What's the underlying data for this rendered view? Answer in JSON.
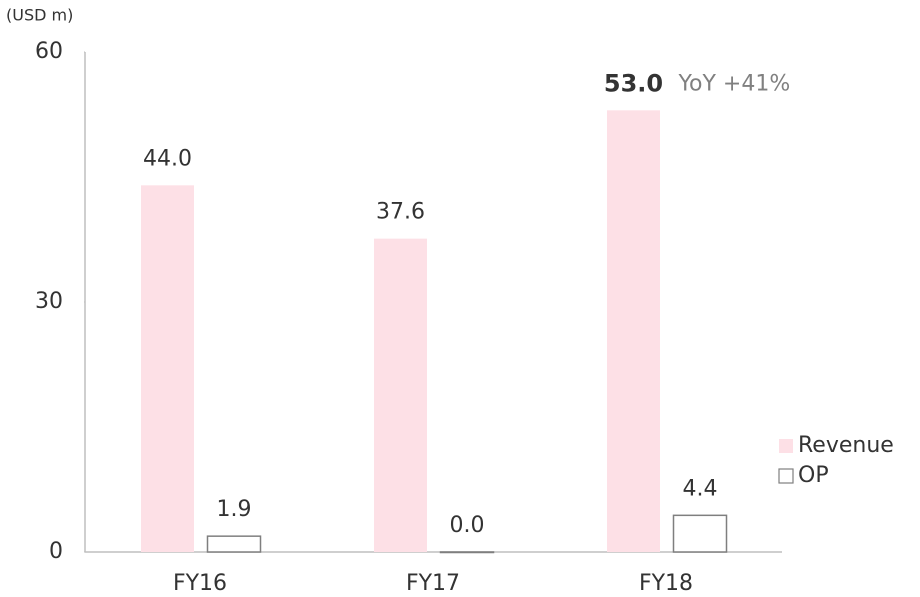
{
  "chart_data": {
    "type": "bar",
    "unit_label": "(USD m)",
    "categories": [
      "FY16",
      "FY17",
      "FY18"
    ],
    "series": [
      {
        "name": "Revenue",
        "color": "#fde0e6",
        "values": [
          44.0,
          37.6,
          53.0
        ],
        "value_labels": [
          "44.0",
          "37.6",
          "53.0"
        ]
      },
      {
        "name": "OP",
        "color": "#ffffff",
        "stroke": "#7f7f7f",
        "values": [
          1.9,
          0.0,
          4.4
        ],
        "value_labels": [
          "1.9",
          "0.0",
          "4.4"
        ]
      }
    ],
    "annotation": "YoY +41%",
    "ylim": [
      0,
      60
    ],
    "yticks": [
      0,
      30,
      60
    ],
    "grid": false,
    "legend": "right"
  }
}
